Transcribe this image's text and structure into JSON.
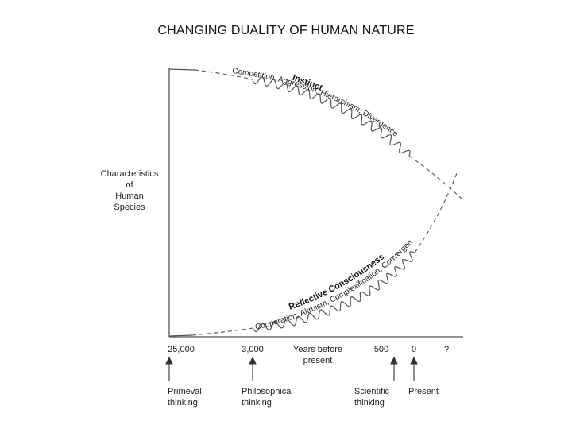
{
  "title": "CHANGING DUALITY OF HUMAN NATURE",
  "y_axis_label": [
    "Characteristics",
    "of",
    "Human",
    "Species"
  ],
  "x_ticks": [
    "25,000",
    "3,000",
    "500",
    "0",
    "?"
  ],
  "x_axis_label": [
    "Years before",
    "present"
  ],
  "milestones": [
    {
      "label": [
        "Primeval",
        "thinking"
      ]
    },
    {
      "label": [
        "Philosophical",
        "thinking"
      ]
    },
    {
      "label": [
        "Scientific",
        "thinking"
      ]
    },
    {
      "label": [
        "Present"
      ]
    }
  ],
  "curves": {
    "instinct": {
      "title": "Instinct",
      "subtitle": "Competition, Aggression, Hierarchism, Divergence"
    },
    "reflective": {
      "title": "Reflective Consciousness",
      "subtitle": "Cooperation, Altruism, Complexification, Convergence"
    }
  },
  "colors": {
    "line": "#555555",
    "text": "#222222"
  }
}
